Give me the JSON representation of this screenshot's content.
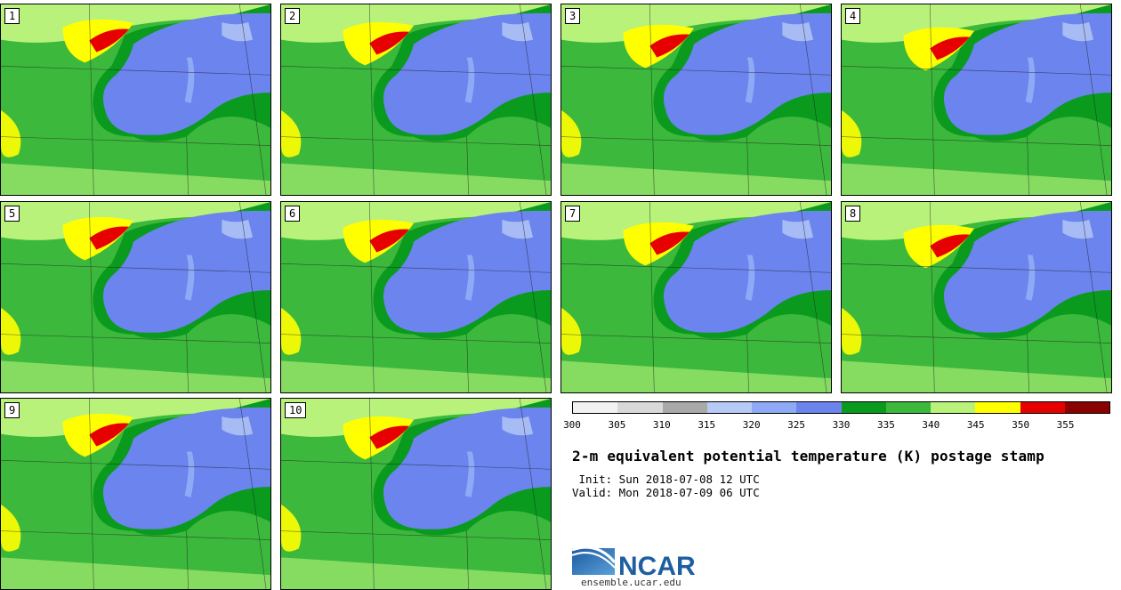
{
  "panels": [
    {
      "label": "1"
    },
    {
      "label": "2"
    },
    {
      "label": "3"
    },
    {
      "label": "4"
    },
    {
      "label": "5"
    },
    {
      "label": "6"
    },
    {
      "label": "7"
    },
    {
      "label": "8"
    },
    {
      "label": "9"
    },
    {
      "label": "10"
    }
  ],
  "colorbar": {
    "ticks": [
      "300",
      "305",
      "310",
      "315",
      "320",
      "325",
      "330",
      "335",
      "340",
      "345",
      "350",
      "355"
    ],
    "colors": [
      "#f2f2f2",
      "#d9d9d9",
      "#a9a9a9",
      "#b7c9f5",
      "#8ea9f5",
      "#6b84ee",
      "#0a9a1e",
      "#3cb83c",
      "#b8f27a",
      "#ffff00",
      "#e60000",
      "#8b0000"
    ]
  },
  "title": "2-m equivalent potential temperature (K) postage stamp",
  "init_line": " Init: Sun 2018-07-08 12 UTC",
  "valid_line": "Valid: Mon 2018-07-09 06 UTC",
  "logo": {
    "text": "NCAR",
    "url": "ensemble.ucar.edu",
    "color": "#1f5fa0"
  },
  "map_colors": {
    "background_green": "#3cb83c",
    "dark_green": "#0a9a1e",
    "light_green": "#b8f27a",
    "yellow": "#ffff00",
    "red": "#e60000",
    "blue": "#6b84ee",
    "light_blue": "#8ea9f5",
    "pale_blue": "#b7c9f5"
  }
}
